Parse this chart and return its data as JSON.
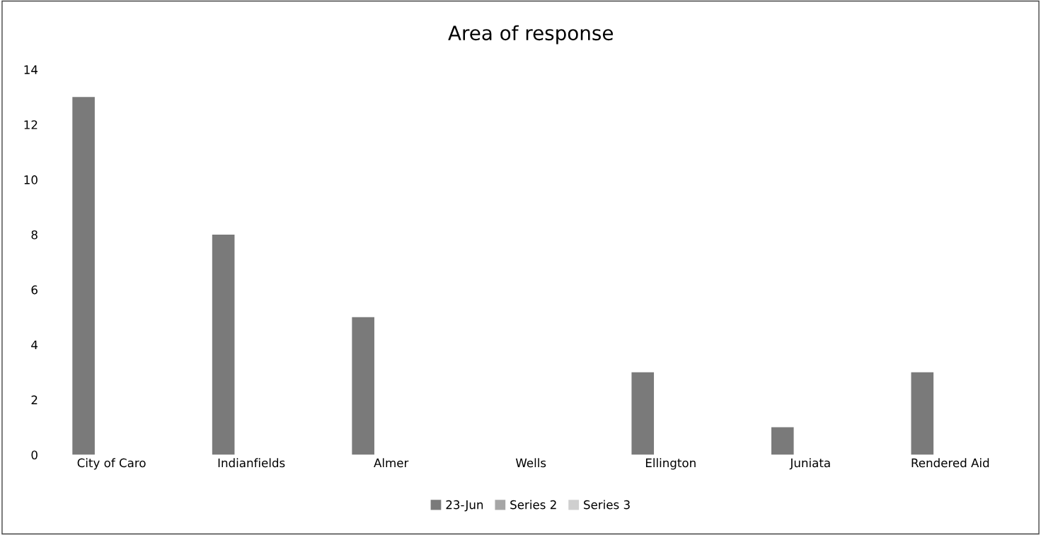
{
  "chart_data": {
    "type": "bar",
    "title": "Area of response",
    "categories": [
      "City of Caro",
      "Indianfields",
      "Almer",
      "Wells",
      "Ellington",
      "Juniata",
      "Rendered Aid"
    ],
    "series": [
      {
        "name": "23-Jun",
        "color": "#7a7a7a",
        "values": [
          13,
          8,
          5,
          0,
          3,
          1,
          3
        ]
      },
      {
        "name": "Series 2",
        "color": "#a6a6a6",
        "values": [
          null,
          null,
          null,
          null,
          null,
          null,
          null
        ]
      },
      {
        "name": "Series 3",
        "color": "#cfcfcf",
        "values": [
          null,
          null,
          null,
          null,
          null,
          null,
          null
        ]
      }
    ],
    "ylim": [
      0,
      14
    ],
    "yticks": [
      0,
      2,
      4,
      6,
      8,
      10,
      12,
      14
    ],
    "grid": false,
    "legend": "bottom"
  }
}
